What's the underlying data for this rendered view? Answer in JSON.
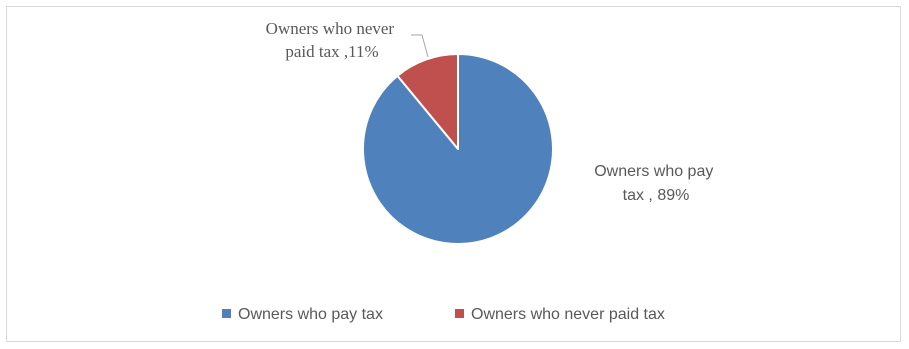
{
  "chart_data": {
    "type": "pie",
    "title": "",
    "slices": [
      {
        "label": "Owners who pay tax",
        "value": 89,
        "color": "#4f81bd",
        "data_label_lines": [
          "Owners who pay",
          "tax , 89%"
        ]
      },
      {
        "label": "Owners who never paid tax",
        "value": 11,
        "color": "#c0504d",
        "data_label_lines": [
          "Owners who never",
          "paid tax ,11%"
        ]
      }
    ],
    "legend": {
      "position": "bottom",
      "entries": [
        "Owners who pay tax",
        "Owners who never paid tax"
      ]
    }
  }
}
